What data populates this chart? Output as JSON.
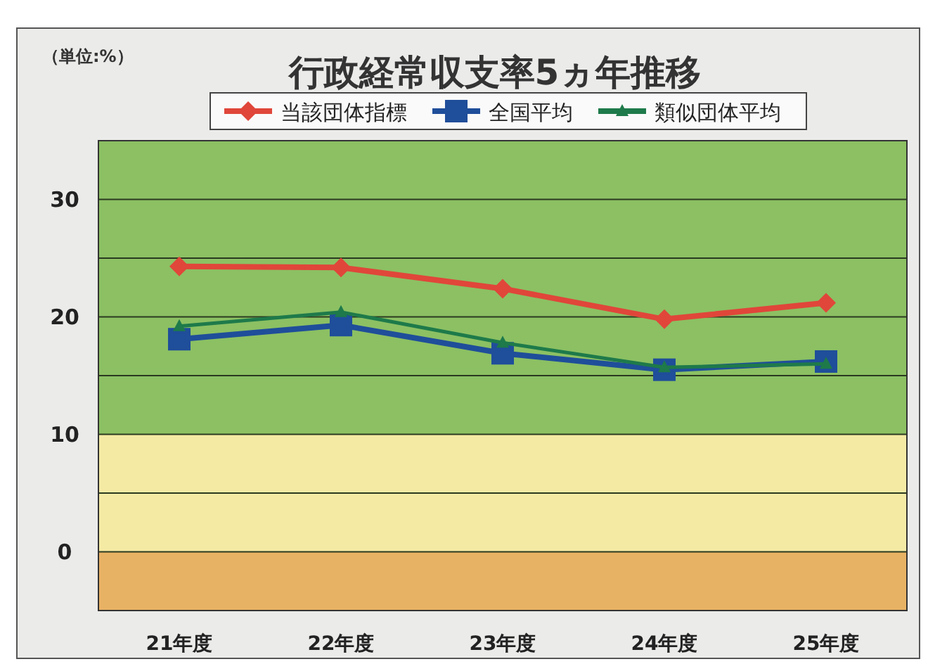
{
  "chart_data": {
    "type": "line",
    "title": "行政経常収支率5ヵ年推移",
    "annotations": [
      "（単位:%）"
    ],
    "categories": [
      "21年度",
      "22年度",
      "23年度",
      "24年度",
      "25年度"
    ],
    "series": [
      {
        "name": "当該団体指標",
        "color": "#e0463a",
        "marker": "diamond",
        "values": [
          24.3,
          24.2,
          22.4,
          19.8,
          21.2
        ]
      },
      {
        "name": "全国平均",
        "color": "#1f4e9a",
        "marker": "square",
        "values": [
          18.1,
          19.3,
          16.9,
          15.5,
          16.2
        ]
      },
      {
        "name": "類似団体平均",
        "color": "#1e7a4a",
        "marker": "triangle",
        "values": [
          19.2,
          20.4,
          17.8,
          15.7,
          16.0
        ]
      }
    ],
    "ylim": [
      -5,
      35
    ],
    "yticks": [
      {
        "value": -5,
        "label": null
      },
      0,
      {
        "value": 5,
        "label": null
      },
      10,
      {
        "value": 15,
        "label": null
      },
      20,
      {
        "value": 25,
        "label": null
      },
      30
    ],
    "grid": "y",
    "legend": "top",
    "bands": [
      {
        "axis": "y",
        "from": 10,
        "to": 35,
        "color": "#8cc063"
      },
      {
        "axis": "y",
        "from": 0,
        "to": 10,
        "color": "#f5eaa4"
      },
      {
        "axis": "y",
        "from": -5,
        "to": 0,
        "color": "#e8b264"
      }
    ]
  }
}
